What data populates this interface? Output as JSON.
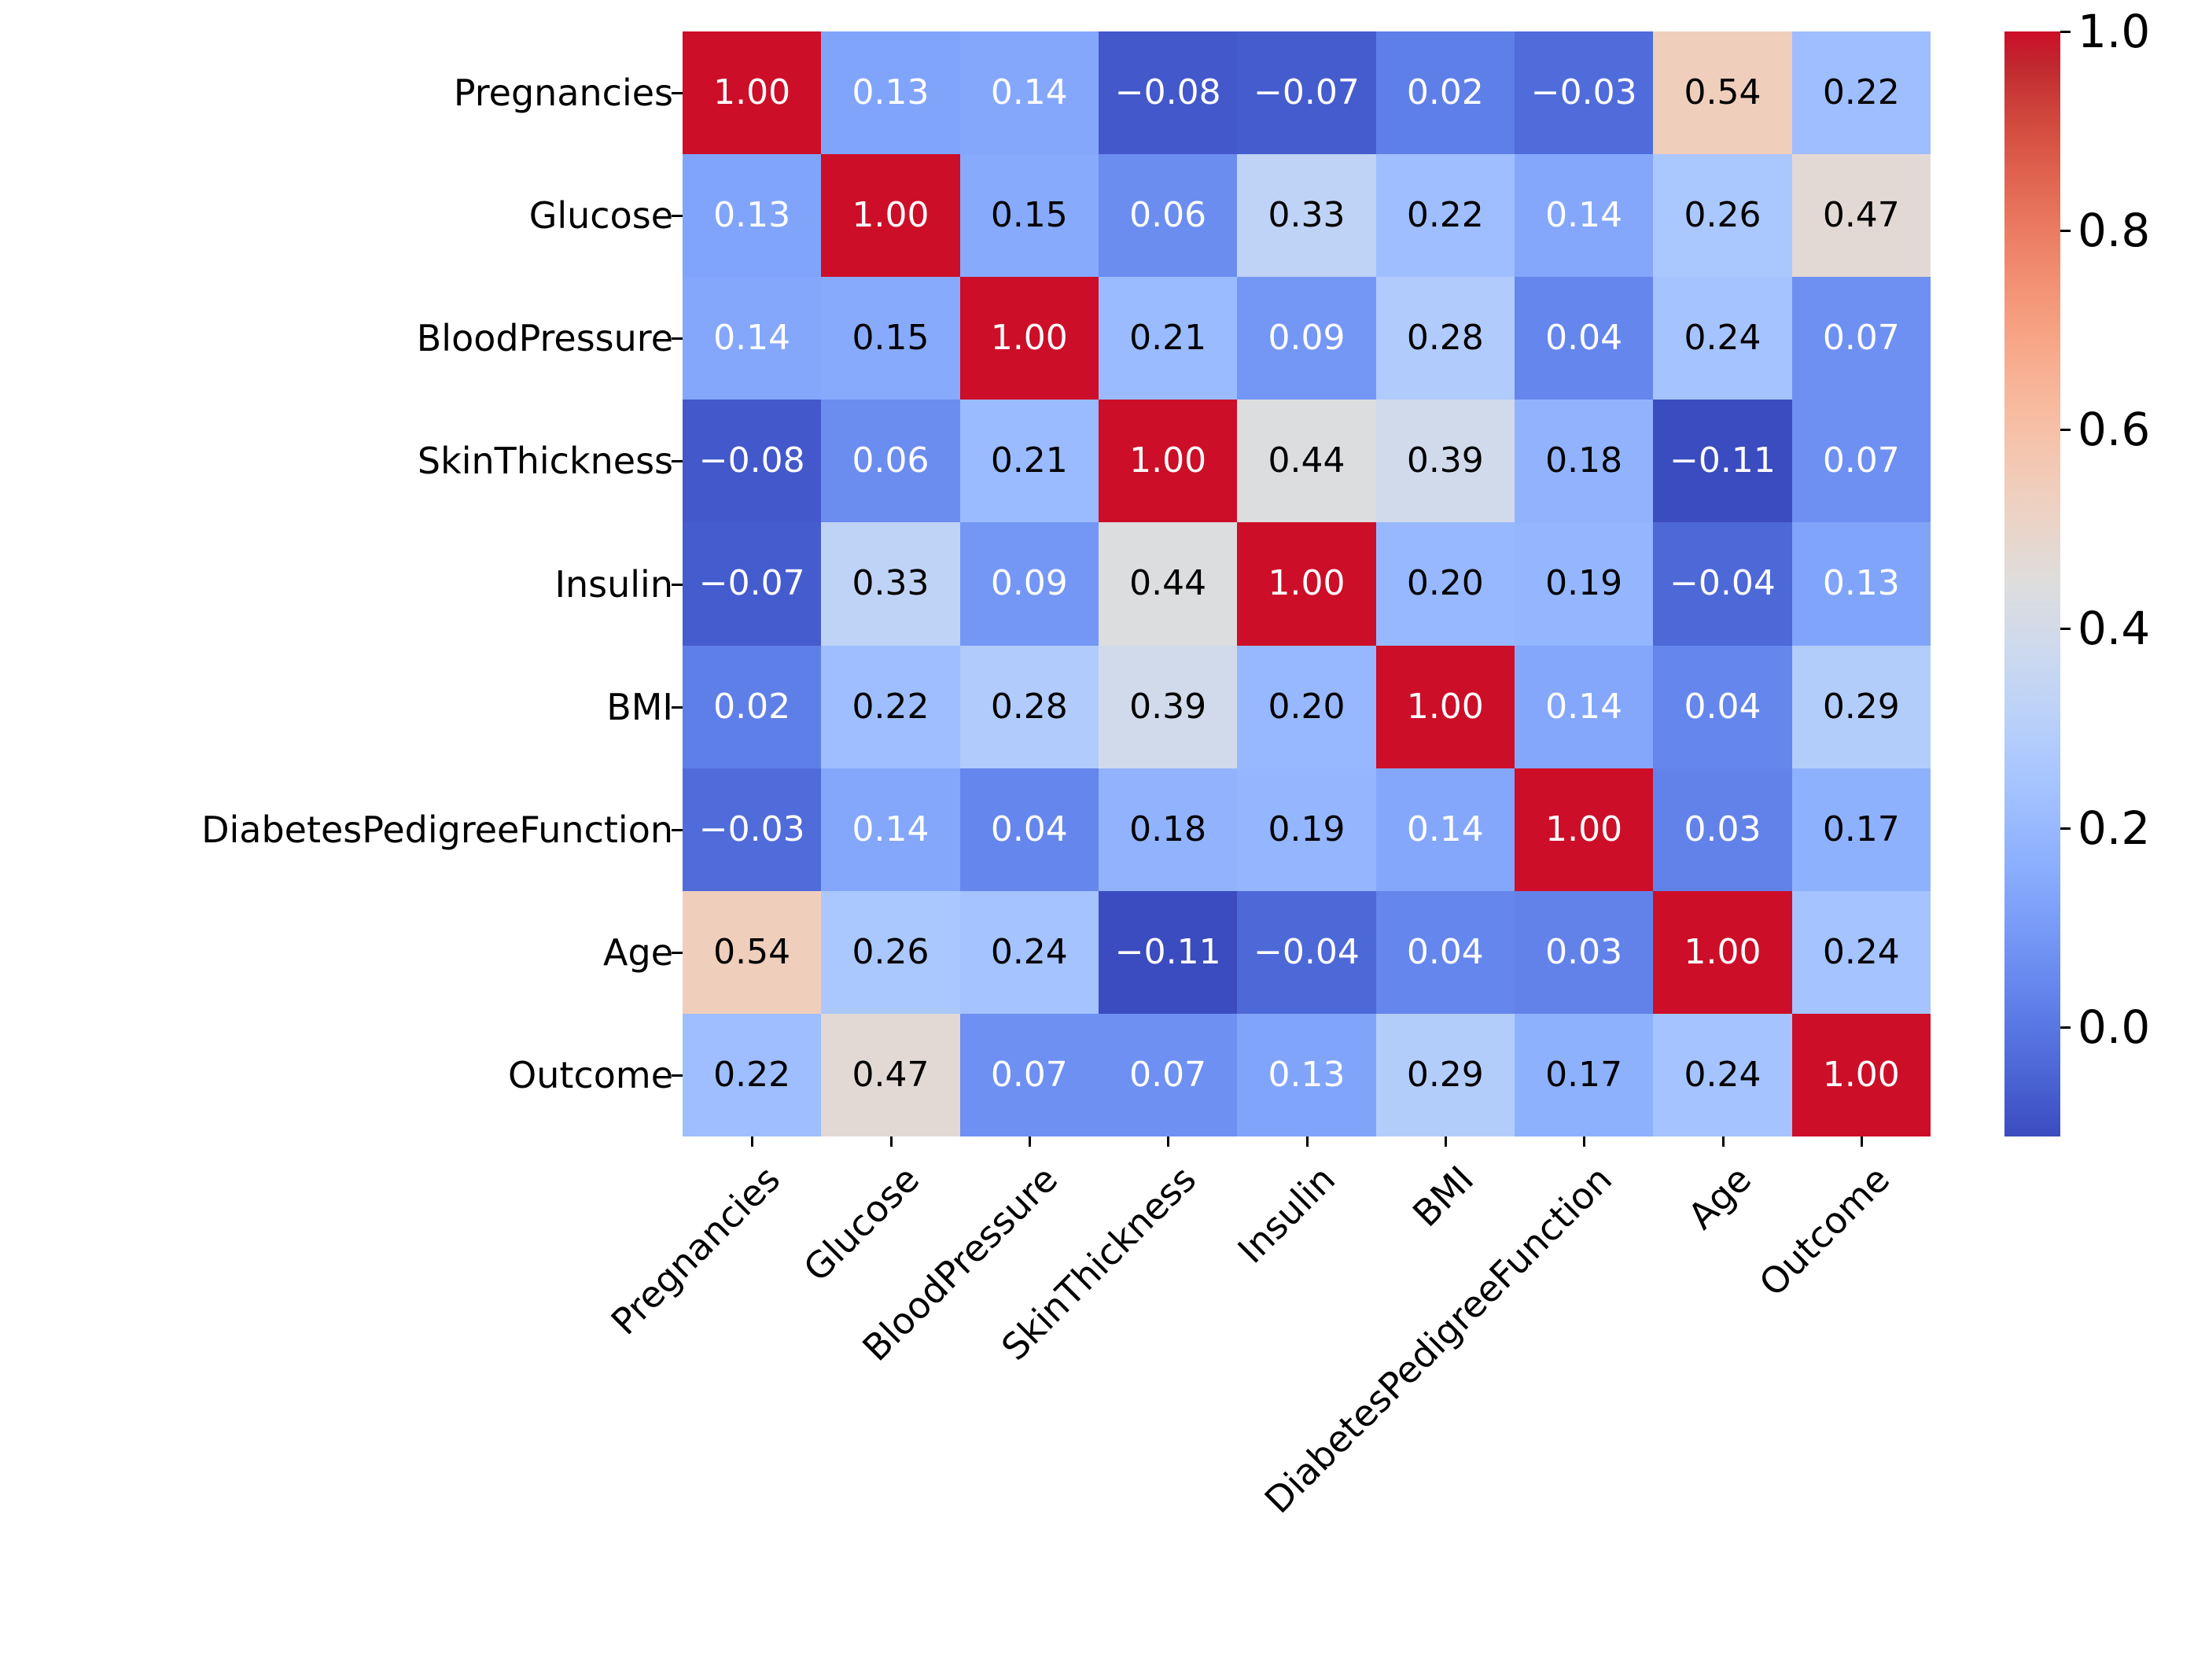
{
  "figure": {
    "background": "#ffffff",
    "text_color": "#000000",
    "annotation_text_light": "#ffffff",
    "annotation_text_dark": "#000000"
  },
  "chart_data": {
    "type": "heatmap",
    "title": "",
    "xlabel": "",
    "ylabel": "",
    "labels": [
      "Pregnancies",
      "Glucose",
      "BloodPressure",
      "SkinThickness",
      "Insulin",
      "BMI",
      "DiabetesPedigreeFunction",
      "Age",
      "Outcome"
    ],
    "matrix": [
      [
        1.0,
        0.13,
        0.14,
        -0.08,
        -0.07,
        0.02,
        -0.03,
        0.54,
        0.22
      ],
      [
        0.13,
        1.0,
        0.15,
        0.06,
        0.33,
        0.22,
        0.14,
        0.26,
        0.47
      ],
      [
        0.14,
        0.15,
        1.0,
        0.21,
        0.09,
        0.28,
        0.04,
        0.24,
        0.07
      ],
      [
        -0.08,
        0.06,
        0.21,
        1.0,
        0.44,
        0.39,
        0.18,
        -0.11,
        0.07
      ],
      [
        -0.07,
        0.33,
        0.09,
        0.44,
        1.0,
        0.2,
        0.19,
        -0.04,
        0.13
      ],
      [
        0.02,
        0.22,
        0.28,
        0.39,
        0.2,
        1.0,
        0.14,
        0.04,
        0.29
      ],
      [
        -0.03,
        0.14,
        0.04,
        0.18,
        0.19,
        0.14,
        1.0,
        0.03,
        0.17
      ],
      [
        0.54,
        0.26,
        0.24,
        -0.11,
        -0.04,
        0.04,
        0.03,
        1.0,
        0.24
      ],
      [
        0.22,
        0.47,
        0.07,
        0.07,
        0.13,
        0.29,
        0.17,
        0.24,
        1.0
      ]
    ],
    "value_decimals": 2,
    "colormap": "coolwarm",
    "vmin": -0.11,
    "vmax": 1.0,
    "grid": false,
    "legend_position": "right-colorbar",
    "colorbar": {
      "tick_labels": [
        "1.0",
        "0.8",
        "0.6",
        "0.4",
        "0.2",
        "0.0"
      ],
      "tick_values": [
        1.0,
        0.8,
        0.6,
        0.4,
        0.2,
        0.0
      ]
    },
    "coolwarm_stops": [
      "#3B4CC0",
      "#445ACC",
      "#4D68D7",
      "#5775E1",
      "#6282EA",
      "#6C8EF1",
      "#779AF7",
      "#82A5FB",
      "#8DB0FE",
      "#98B9FF",
      "#A3C2FF",
      "#AEC9FD",
      "#B8D0F9",
      "#C2D5F4",
      "#CCD9EE",
      "#D5DBE6",
      "#DDDDDD",
      "#E5D8D1",
      "#ECD3C5",
      "#F1CCB9",
      "#F5C4AD",
      "#F7BBA0",
      "#F7B194",
      "#F7A687",
      "#F49A7B",
      "#F18D6F",
      "#EC7F63",
      "#E57058",
      "#DE604D",
      "#D55042",
      "#CB3E38",
      "#C0282F",
      "#CD0E28"
    ]
  }
}
